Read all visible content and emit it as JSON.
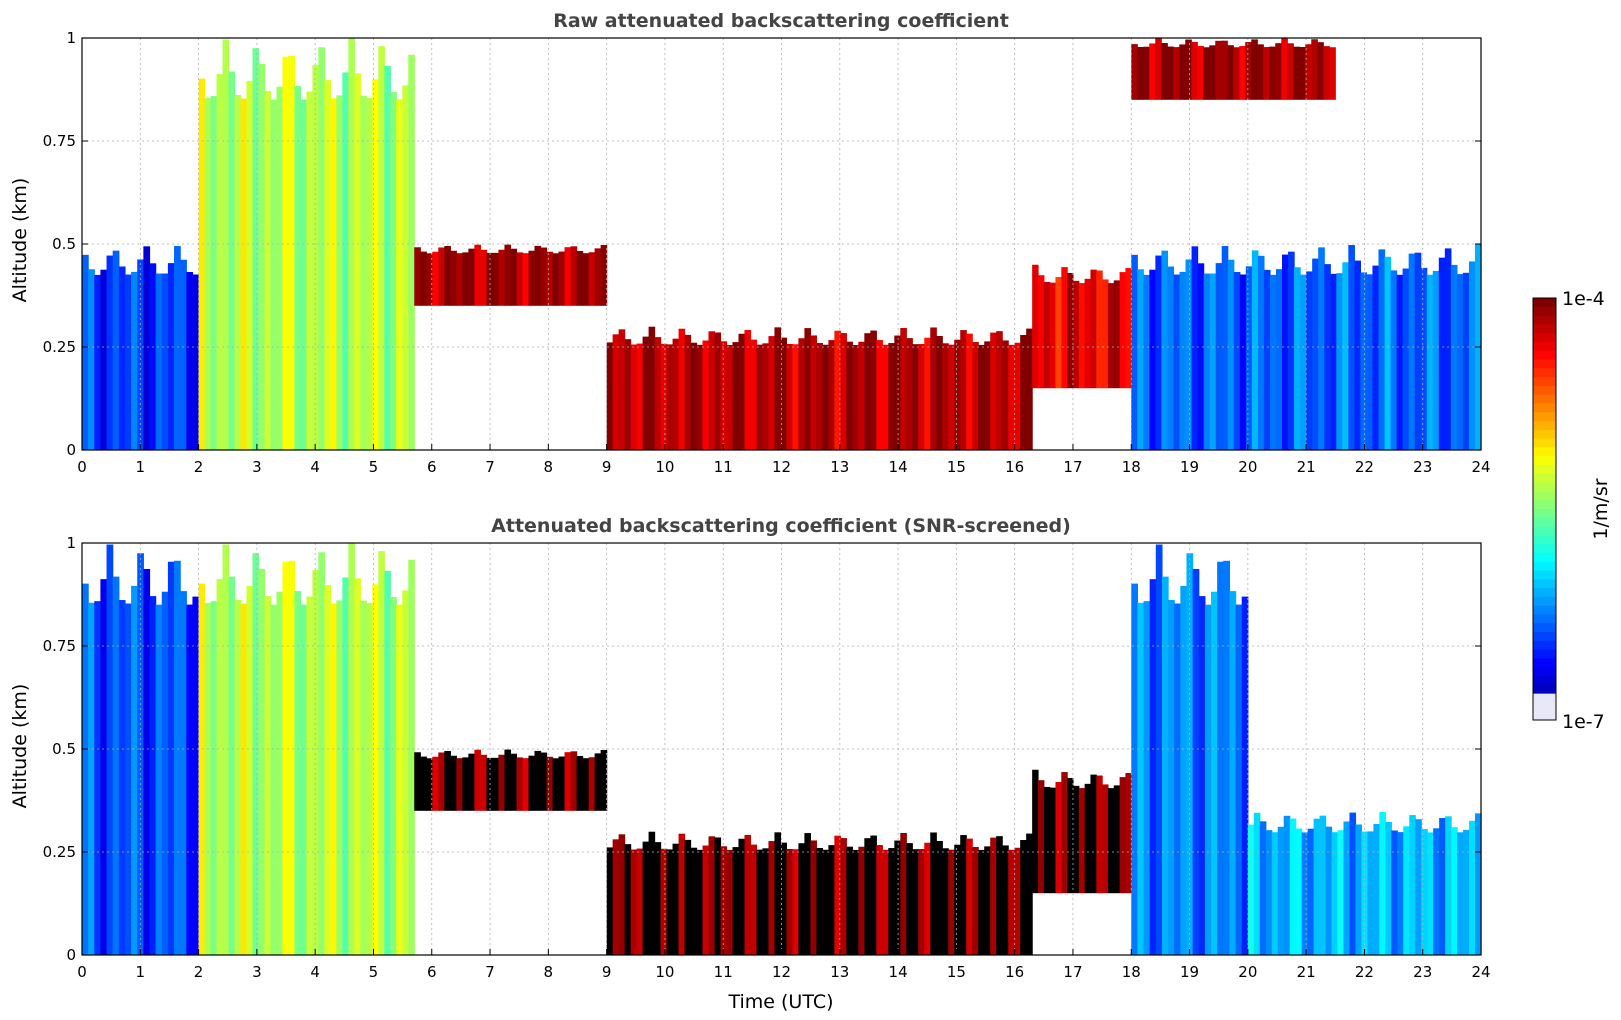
{
  "chart_data": [
    {
      "type": "heatmap",
      "title": "Raw attenuated backscattering coefficient",
      "xlabel": "",
      "ylabel": "Altitude (km)",
      "xlim": [
        0,
        24
      ],
      "ylim": [
        0,
        1
      ],
      "x_ticks": [
        "0",
        "1",
        "2",
        "3",
        "4",
        "5",
        "6",
        "7",
        "8",
        "9",
        "10",
        "11",
        "12",
        "13",
        "14",
        "15",
        "16",
        "17",
        "18",
        "19",
        "20",
        "21",
        "22",
        "23",
        "24"
      ],
      "y_ticks": [
        "0",
        "0.25",
        "0.5",
        "0.75",
        "1"
      ],
      "grid": true,
      "colormap": "jet",
      "color_scale": "log",
      "value_range": [
        "1e-7",
        "1e-4"
      ],
      "unit": "1/m/sr",
      "screening": "none",
      "layers": [
        {
          "x_start": 0,
          "x_end": 2,
          "base": 0,
          "top": 0.5,
          "level": 0.18
        },
        {
          "x_start": 2,
          "x_end": 5.7,
          "base": 0,
          "top": 1,
          "level": 0.55
        },
        {
          "x_start": 5.7,
          "x_end": 9,
          "base": 0.35,
          "top": 0.5,
          "level": 0.97
        },
        {
          "x_start": 9,
          "x_end": 16.3,
          "base": 0,
          "top": 0.3,
          "level": 0.95
        },
        {
          "x_start": 16.3,
          "x_end": 18,
          "base": 0.15,
          "top": 0.45,
          "level": 0.9
        },
        {
          "x_start": 18,
          "x_end": 21.5,
          "base": 0.85,
          "top": 1,
          "level": 0.97
        },
        {
          "x_start": 18,
          "x_end": 24,
          "base": 0,
          "top": 0.5,
          "level": 0.22
        }
      ]
    },
    {
      "type": "heatmap",
      "title": "Attenuated backscattering coefficient (SNR-screened)",
      "xlabel": "Time (UTC)",
      "ylabel": "Altitude (km)",
      "xlim": [
        0,
        24
      ],
      "ylim": [
        0,
        1
      ],
      "x_ticks": [
        "0",
        "1",
        "2",
        "3",
        "4",
        "5",
        "6",
        "7",
        "8",
        "9",
        "10",
        "11",
        "12",
        "13",
        "14",
        "15",
        "16",
        "17",
        "18",
        "19",
        "20",
        "21",
        "22",
        "23",
        "24"
      ],
      "y_ticks": [
        "0",
        "0.25",
        "0.5",
        "0.75",
        "1"
      ],
      "grid": true,
      "colormap": "jet",
      "color_scale": "log",
      "value_range": [
        "1e-7",
        "1e-4"
      ],
      "unit": "1/m/sr",
      "screening": "SNR",
      "layers": [
        {
          "x_start": 0,
          "x_end": 2,
          "base": 0,
          "top": 1,
          "level": 0.2
        },
        {
          "x_start": 2,
          "x_end": 5.7,
          "base": 0,
          "top": 1,
          "level": 0.55
        },
        {
          "x_start": 5.7,
          "x_end": 9,
          "base": 0.35,
          "top": 0.5,
          "level": 1.0
        },
        {
          "x_start": 9,
          "x_end": 16.3,
          "base": 0,
          "top": 0.3,
          "level": 1.0
        },
        {
          "x_start": 16.3,
          "x_end": 18,
          "base": 0.15,
          "top": 0.45,
          "level": 1.0
        },
        {
          "x_start": 18,
          "x_end": 20,
          "base": 0,
          "top": 1,
          "level": 0.25
        },
        {
          "x_start": 20,
          "x_end": 24,
          "base": 0,
          "top": 0.35,
          "level": 0.3
        }
      ]
    }
  ],
  "colorbar": {
    "label": "1/m/sr",
    "max_label": "1e-4",
    "min_label": "1e-7",
    "colormap": "jet",
    "scale": "log"
  }
}
